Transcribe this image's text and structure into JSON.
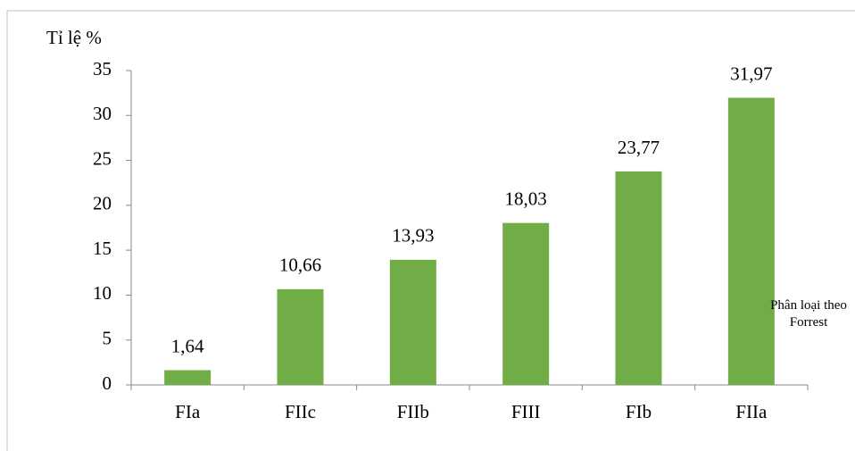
{
  "chart_data": {
    "type": "bar",
    "y_axis_label": "Tỉ lệ %",
    "x_axis_label": "Phân loại theo Forrest",
    "categories": [
      "FIa",
      "FIIc",
      "FIIb",
      "FIII",
      "FIb",
      "FIIa"
    ],
    "values": [
      1.64,
      10.66,
      13.93,
      18.03,
      23.77,
      31.97
    ],
    "value_labels": [
      "1,64",
      "10,66",
      "13,93",
      "18,03",
      "23,77",
      "31,97"
    ],
    "color": "#70ad47",
    "ylim": [
      0,
      35
    ],
    "yticks": [
      0,
      5,
      10,
      15,
      20,
      25,
      30,
      35
    ],
    "grid": false
  }
}
